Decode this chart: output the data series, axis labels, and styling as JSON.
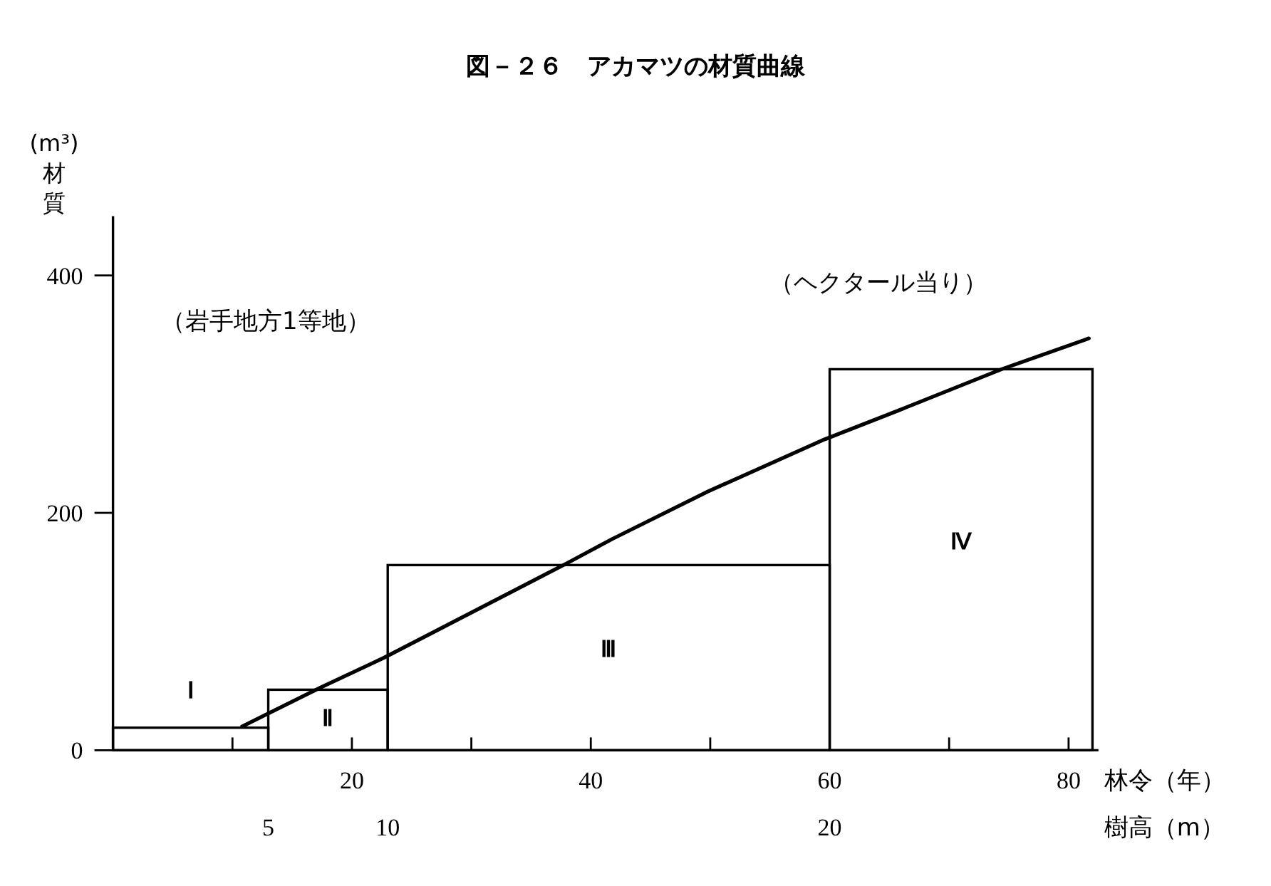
{
  "chart_data": {
    "type": "histogram",
    "title": "図－２６　アカマツの材質曲線",
    "xlabel": "林令（年）",
    "x2label": "樹高（m）",
    "ylabel": "(m³)材質",
    "xlim": [
      0,
      82.5
    ],
    "xticks": [
      {
        "value": 10,
        "label": null
      },
      20,
      {
        "value": 30,
        "label": null
      },
      40,
      {
        "value": 50,
        "label": null
      },
      60,
      {
        "value": 70,
        "label": null
      },
      80
    ],
    "ylim": [
      0,
      450
    ],
    "yticks": [
      0,
      200,
      400
    ],
    "series": [
      {
        "color": "#000000",
        "bins": [
          0,
          13,
          23,
          60,
          82
        ],
        "values": [
          19,
          51,
          156,
          321
        ]
      },
      {
        "type": "line",
        "color": "#000000",
        "x": [
          10.8,
          17.4,
          22.7,
          37.9,
          41.8,
          49.8,
          59.6,
          65.7,
          74.4,
          81.7
        ],
        "values": [
          20,
          53,
          78,
          157,
          178,
          218,
          262,
          286,
          321,
          347
        ]
      }
    ],
    "annotations": [
      "（岩手地方1等地）",
      "（ヘクタール当り）",
      "Ⅰ",
      "Ⅱ",
      "Ⅲ",
      "Ⅳ",
      "5",
      "10",
      "20"
    ]
  }
}
